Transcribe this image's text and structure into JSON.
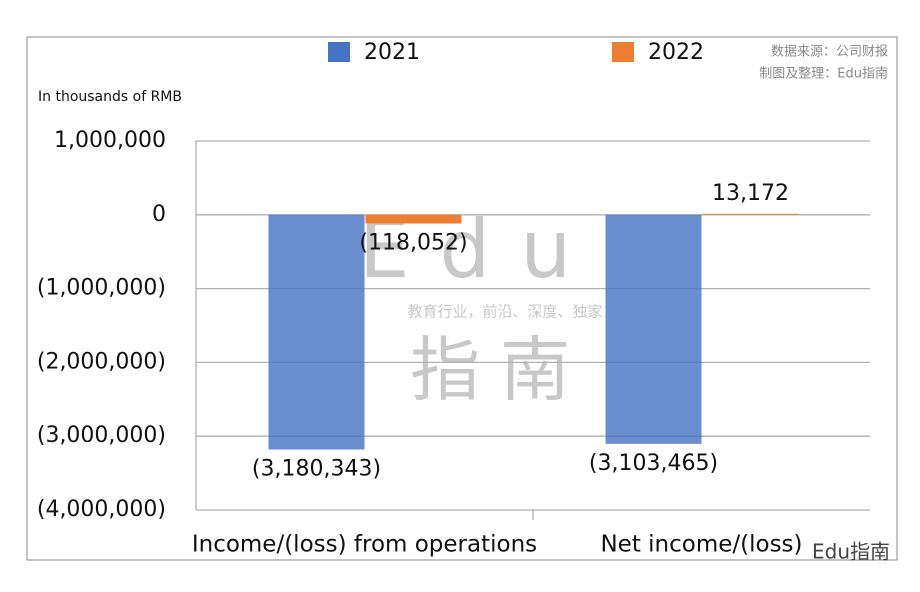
{
  "chart_data": {
    "type": "bar",
    "y_axis_label": "In thousands of RMB",
    "categories": [
      "Income/(loss) from operations",
      "Net income/(loss)"
    ],
    "series": [
      {
        "name": "2021",
        "color": "#4472c4",
        "values": [
          -3180343,
          -3103465
        ],
        "value_labels": [
          "(3,180,343)",
          "(3,103,465)"
        ]
      },
      {
        "name": "2022",
        "color": "#ed7d31",
        "values": [
          -118052,
          13172
        ],
        "value_labels": [
          "(118,052)",
          "13,172"
        ]
      }
    ],
    "ylim": [
      -4000000,
      1000000
    ],
    "yticks": [
      {
        "value": -4000000,
        "label": "(4,000,000)"
      },
      {
        "value": -3000000,
        "label": "(3,000,000)"
      },
      {
        "value": -2000000,
        "label": "(2,000,000)"
      },
      {
        "value": -1000000,
        "label": "(1,000,000)"
      },
      0,
      {
        "value": 1000000,
        "label": "1,000,000"
      }
    ],
    "grid": true,
    "source": "数据来源：公司财报",
    "credit": "制图及整理：Edu指南",
    "watermark": {
      "top": "Edu",
      "slogan": "教育行业，前沿、深度、独家",
      "bottom": "指南",
      "corner": "Edu指南"
    }
  }
}
